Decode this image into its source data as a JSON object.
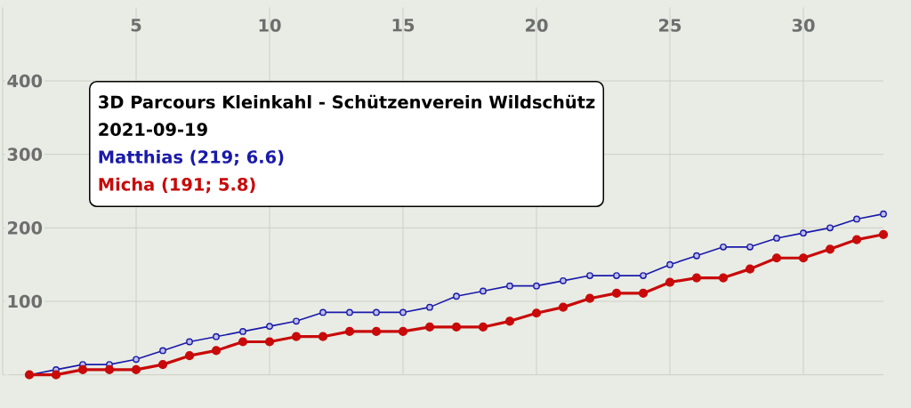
{
  "chart_data": {
    "type": "line",
    "title": "3D Parcours Kleinkahl - Schützenverein Wildschütz",
    "subtitle": "2021-09-19",
    "x": [
      1,
      2,
      3,
      4,
      5,
      6,
      7,
      8,
      9,
      10,
      11,
      12,
      13,
      14,
      15,
      16,
      17,
      18,
      19,
      20,
      21,
      22,
      23,
      24,
      25,
      26,
      27,
      28,
      29,
      30,
      31,
      32,
      33
    ],
    "series": [
      {
        "name": "Matthias (219; 6.6)",
        "color": "#1a1aaa",
        "values": [
          0,
          7,
          14,
          14,
          21,
          33,
          45,
          52,
          59,
          66,
          73,
          85,
          85,
          85,
          85,
          92,
          107,
          114,
          121,
          121,
          128,
          135,
          135,
          135,
          150,
          162,
          174,
          174,
          186,
          193,
          200,
          212,
          219
        ]
      },
      {
        "name": "Micha (191; 5.8)",
        "color": "#c80a0a",
        "values": [
          0,
          0,
          7,
          7,
          7,
          14,
          26,
          33,
          45,
          45,
          52,
          52,
          59,
          59,
          59,
          65,
          65,
          65,
          73,
          84,
          92,
          104,
          111,
          111,
          126,
          132,
          132,
          144,
          159,
          159,
          171,
          184,
          191
        ]
      }
    ],
    "xlim": [
      0,
      33
    ],
    "ylim": [
      0,
      500
    ],
    "xticks": [
      {
        "value": 0,
        "label": null
      },
      5,
      10,
      15,
      20,
      25,
      30
    ],
    "yticks": [
      {
        "value": 0,
        "label": null
      },
      100,
      200,
      300,
      400
    ],
    "grid": true,
    "legend": "top left",
    "marker": "circle",
    "line_style": "solid"
  }
}
